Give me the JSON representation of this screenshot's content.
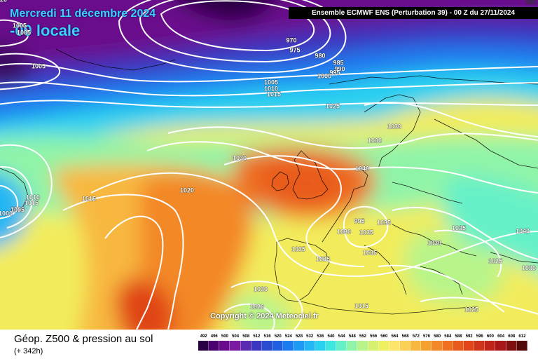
{
  "header": {
    "date_line": "Mercredi 11 décembre 2024",
    "local_line": "-00 locale",
    "run_info": "Ensemble ECMWF ENS  (Perturbation 39)  - 00 Z du 27/11/2024"
  },
  "map": {
    "copyright": "Copyright © 2024 Meteociel.fr",
    "isobar_labels": [
      "995",
      "1005",
      "1005",
      "1005",
      "970",
      "975",
      "980",
      "985",
      "990",
      "995",
      "1000",
      "1005",
      "1010",
      "1015",
      "1025",
      "1030",
      "1030",
      "1030",
      "1040",
      "1020",
      "1015",
      "1010",
      "1015",
      "1010",
      "1005",
      "1000",
      "995",
      "1035",
      "1035",
      "1030",
      "1035",
      "1035",
      "1035",
      "1030",
      "1040",
      "1035",
      "1025",
      "1030",
      "1030",
      "1020",
      "1015",
      "1025",
      "1020"
    ]
  },
  "footer": {
    "title": "Géop. Z500 & pression au sol",
    "subtitle": "(+ 342h)"
  },
  "legend": {
    "values": [
      "492",
      "496",
      "500",
      "504",
      "508",
      "512",
      "516",
      "520",
      "524",
      "528",
      "532",
      "536",
      "540",
      "544",
      "548",
      "552",
      "556",
      "560",
      "564",
      "568",
      "572",
      "576",
      "580",
      "584",
      "588",
      "592",
      "596",
      "600",
      "604",
      "608",
      "612"
    ],
    "colors": [
      "#2a0044",
      "#4b0070",
      "#6a0a8c",
      "#7a1aa0",
      "#5a2ab0",
      "#3a36c0",
      "#2a4ad0",
      "#2060e0",
      "#1a7cf0",
      "#1c9af4",
      "#22b6f4",
      "#2ad0f0",
      "#3ee6e0",
      "#66f0c8",
      "#90f4a8",
      "#b8f48a",
      "#d8f070",
      "#eef060",
      "#fde46a",
      "#fcd054",
      "#f8b840",
      "#f6a030",
      "#f38828",
      "#ee7020",
      "#e85a1c",
      "#e04418",
      "#d03418",
      "#c02418",
      "#a81818",
      "#801010",
      "#500808"
    ]
  }
}
